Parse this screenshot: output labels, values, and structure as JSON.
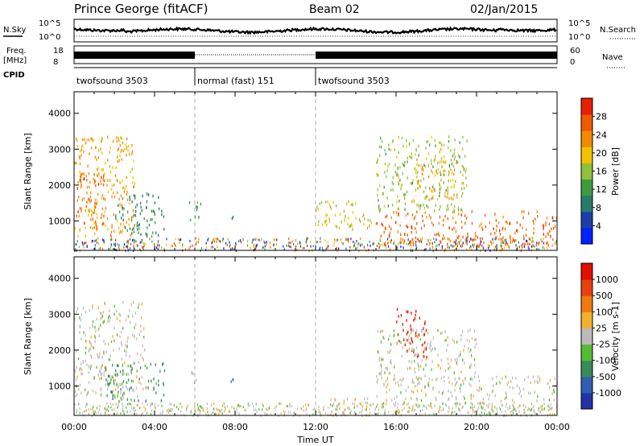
{
  "header": {
    "station": "Prince George (fitACF)",
    "beam": "Beam 02",
    "date": "02/Jan/2015"
  },
  "strip": {
    "nsky_label": "N.Sky",
    "nsearch_label": "N.Search",
    "freq_label_1": "Freq.",
    "freq_label_2": "[MHz]",
    "nave_label": "Nave",
    "cpid_label": "CPID",
    "noise_ticks_left": [
      "10^5",
      "10^0"
    ],
    "noise_ticks_right": [
      "10^5",
      "10^0"
    ],
    "freq_ticks": [
      "18",
      "8"
    ],
    "nave_ticks": [
      "60",
      "0"
    ]
  },
  "cpid_segments": [
    {
      "label": "twofsound 3503",
      "start": 0,
      "end": 6
    },
    {
      "label": "normal (fast) 151",
      "start": 6,
      "end": 12
    },
    {
      "label": "twofsound 3503",
      "start": 12,
      "end": 24
    }
  ],
  "x_axis": {
    "label": "Time UT",
    "ticks": [
      "00:00",
      "04:00",
      "08:00",
      "12:00",
      "16:00",
      "20:00",
      "00:00"
    ],
    "range_hours": [
      0,
      24
    ]
  },
  "panels": {
    "power": {
      "ylabel": "Slant Range [km]",
      "yticks": [
        "1000",
        "2000",
        "3000",
        "4000"
      ],
      "cbar_label": "Power [dB]",
      "cbar_ticks": [
        "4",
        "8",
        "12",
        "16",
        "20",
        "24",
        "28"
      ],
      "cbar_colors": [
        "#0022ff",
        "#1b3fa8",
        "#2a7a6a",
        "#3f9a3f",
        "#8fc23a",
        "#f2c200",
        "#f28a00",
        "#f05a00",
        "#e82000"
      ]
    },
    "velocity": {
      "ylabel": "Slant Range [km]",
      "yticks": [
        "1000",
        "2000",
        "3000",
        "4000"
      ],
      "cbar_label": "Velocity [m s-1]",
      "cbar_ticks": [
        "1000",
        "500",
        "100",
        "25",
        "-25",
        "-100",
        "-500",
        "-1000"
      ],
      "cbar_colors": [
        "#2233aa",
        "#2f5fb0",
        "#3a8a5a",
        "#55bb33",
        "#bbbbbb",
        "#f0b030",
        "#f07a10",
        "#e84010",
        "#e01000"
      ]
    }
  },
  "chart_data": [
    {
      "type": "heatmap",
      "title": "Power",
      "xlabel": "Time UT",
      "ylabel": "Slant Range [km]",
      "x_range_hours": [
        0,
        24
      ],
      "ylim": [
        180,
        4600
      ],
      "colorbar": {
        "label": "Power [dB]",
        "range": [
          0,
          32
        ]
      },
      "regions": [
        {
          "t": [
            0.0,
            3.0
          ],
          "r": [
            600,
            3400
          ],
          "value": 22
        },
        {
          "t": [
            0.1,
            1.5
          ],
          "r": [
            800,
            2400
          ],
          "value": 26
        },
        {
          "t": [
            2.0,
            4.5
          ],
          "r": [
            600,
            1800
          ],
          "value": 10
        },
        {
          "t": [
            5.7,
            6.3
          ],
          "r": [
            1000,
            1600
          ],
          "value": 12
        },
        {
          "t": [
            7.6,
            7.9
          ],
          "r": [
            1100,
            1300
          ],
          "value": 10
        },
        {
          "t": [
            12.0,
            15.0
          ],
          "r": [
            800,
            1600
          ],
          "value": 18
        },
        {
          "t": [
            15.0,
            24.0
          ],
          "r": [
            300,
            1300
          ],
          "value": 26
        },
        {
          "t": [
            15.0,
            19.5
          ],
          "r": [
            1300,
            3400
          ],
          "value": 16
        },
        {
          "t": [
            17.0,
            19.0
          ],
          "r": [
            1600,
            2800
          ],
          "value": 22
        }
      ]
    },
    {
      "type": "heatmap",
      "title": "Velocity",
      "xlabel": "Time UT",
      "ylabel": "Slant Range [km]",
      "x_range_hours": [
        0,
        24
      ],
      "ylim": [
        180,
        4600
      ],
      "colorbar": {
        "label": "Velocity [m s-1]",
        "range": [
          -1000,
          1000
        ]
      },
      "regions": [
        {
          "t": [
            0.0,
            3.5
          ],
          "r": [
            700,
            3400
          ],
          "value": 0
        },
        {
          "t": [
            1.5,
            4.5
          ],
          "r": [
            600,
            1700
          ],
          "value": -400
        },
        {
          "t": [
            5.8,
            6.2
          ],
          "r": [
            1000,
            1500
          ],
          "value": 0
        },
        {
          "t": [
            7.6,
            7.9
          ],
          "r": [
            1100,
            1300
          ],
          "value": -900
        },
        {
          "t": [
            12.5,
            15.0
          ],
          "r": [
            300,
            700
          ],
          "value": 150
        },
        {
          "t": [
            15.0,
            24.0
          ],
          "r": [
            400,
            1300
          ],
          "value": 0
        },
        {
          "t": [
            16.0,
            17.5
          ],
          "r": [
            1800,
            3200
          ],
          "value": 900
        },
        {
          "t": [
            15.0,
            20.0
          ],
          "r": [
            1200,
            2600
          ],
          "value": 10
        }
      ]
    }
  ]
}
